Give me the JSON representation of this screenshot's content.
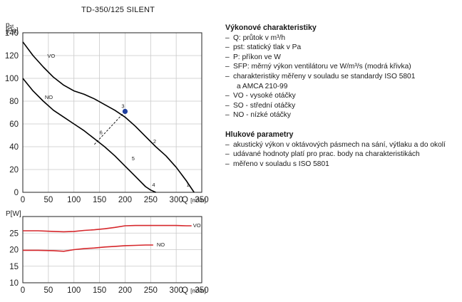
{
  "title": "TD-350/125 SILENT",
  "legend": {
    "section1_heading": "Výkonové charakteristiky",
    "section1_items": [
      "Q: průtok v m³/h",
      "pst: statický tlak v Pa",
      "P: příkon ve W",
      "SFP: měrný výkon ventilátoru ve W/m³/s (modrá křivka)",
      "charakteristiky měřeny v souladu se standardy ISO 5801",
      "VO - vysoké otáčky",
      "SO - střední otáčky",
      "NO - nízké otáčky"
    ],
    "section1_item5_cont": "a AMCA 210-99",
    "section2_heading": "Hlukové parametry",
    "section2_items": [
      "akustický výkon v oktávových pásmech na sání, výtlaku a do okolí",
      "udávané hodnoty platí pro prac. body na charakteristikách",
      "měřeno v souladu s ISO 5801"
    ],
    "dash": "–"
  },
  "chart_data": [
    {
      "type": "line",
      "ylabel_main": "p",
      "ylabel_sub": "st",
      "yunit": "[Pa]",
      "xlabel": "Q",
      "xunit": "[m³/h]",
      "xlim": [
        0,
        350
      ],
      "ylim": [
        0,
        140
      ],
      "xticks": [
        0,
        50,
        100,
        150,
        200,
        250,
        300,
        350
      ],
      "yticks": [
        0,
        20,
        40,
        60,
        80,
        100,
        120,
        140
      ],
      "grid": true,
      "series": [
        {
          "name": "VO",
          "color": "#000000",
          "x": [
            0,
            20,
            40,
            60,
            80,
            100,
            120,
            140,
            160,
            180,
            200,
            220,
            240,
            260,
            280,
            300,
            320,
            335
          ],
          "y": [
            132,
            120,
            110,
            101,
            94,
            89,
            86,
            82,
            77,
            72,
            66,
            58,
            49,
            40,
            32,
            22,
            10,
            0
          ]
        },
        {
          "name": "NO",
          "color": "#000000",
          "x": [
            0,
            20,
            40,
            60,
            80,
            100,
            120,
            140,
            160,
            180,
            200,
            220,
            240,
            250,
            260
          ],
          "y": [
            100,
            89,
            80,
            72,
            66,
            60,
            54,
            47,
            40,
            32,
            23,
            14,
            5,
            2,
            0
          ]
        },
        {
          "name": "SFP",
          "color": "#000000",
          "dashed": true,
          "x": [
            140,
            200
          ],
          "y": [
            42,
            71
          ]
        }
      ],
      "marker": {
        "x": 200,
        "y": 71,
        "color": "#1f3f9f"
      },
      "curve_labels": [
        {
          "text": "VO",
          "x": 48,
          "y": 118
        },
        {
          "text": "NO",
          "x": 43,
          "y": 82
        },
        {
          "text": "1",
          "x": 320,
          "y": 5
        },
        {
          "text": "2",
          "x": 255,
          "y": 43
        },
        {
          "text": "3",
          "x": 193,
          "y": 74
        },
        {
          "text": "4",
          "x": 253,
          "y": 5
        },
        {
          "text": "5",
          "x": 213,
          "y": 28
        },
        {
          "text": "6",
          "x": 150,
          "y": 51
        }
      ]
    },
    {
      "type": "line",
      "ylabel": "P[W]",
      "xlabel": "Q",
      "xunit": "[m³/h]",
      "xlim": [
        0,
        350
      ],
      "ylim": [
        10,
        30
      ],
      "xticks": [
        0,
        50,
        100,
        150,
        200,
        250,
        300,
        350
      ],
      "yticks": [
        10,
        15,
        20,
        25
      ],
      "grid": true,
      "series": [
        {
          "name": "VO",
          "color": "#d6272b",
          "x": [
            0,
            30,
            60,
            80,
            100,
            120,
            140,
            160,
            180,
            200,
            220,
            240,
            260,
            280,
            300,
            320,
            330
          ],
          "y": [
            25.7,
            25.7,
            25.5,
            25.4,
            25.5,
            25.8,
            26,
            26.3,
            26.7,
            27.2,
            27.3,
            27.3,
            27.3,
            27.3,
            27.3,
            27.2,
            27.2
          ]
        },
        {
          "name": "NO",
          "color": "#d6272b",
          "x": [
            0,
            30,
            60,
            80,
            100,
            120,
            140,
            160,
            180,
            200,
            220,
            240,
            255
          ],
          "y": [
            19.8,
            19.8,
            19.7,
            19.5,
            20,
            20.3,
            20.5,
            20.8,
            21,
            21.2,
            21.3,
            21.4,
            21.4
          ]
        }
      ],
      "curve_labels": [
        {
          "text": "VO",
          "x": 333,
          "y": 26.8
        },
        {
          "text": "NO",
          "x": 262,
          "y": 21.0
        }
      ]
    }
  ]
}
